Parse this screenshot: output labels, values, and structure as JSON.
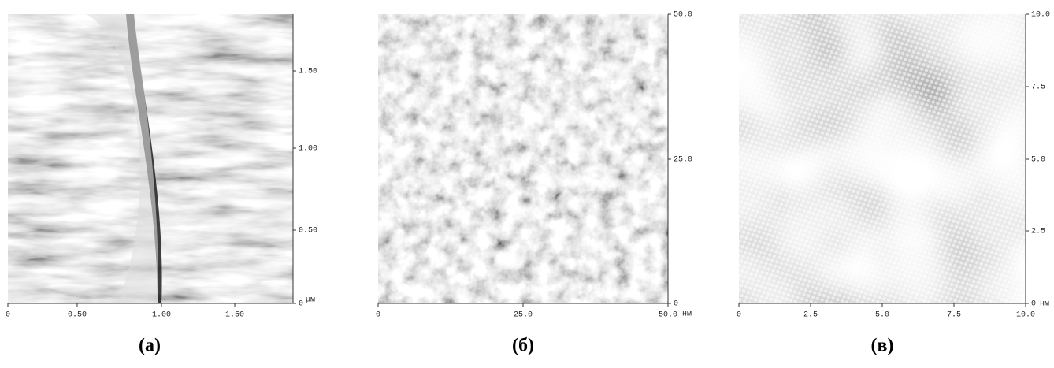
{
  "panels": [
    {
      "caption": "(а)",
      "xticks": [
        "0",
        "0.50",
        "1.00",
        "1.50"
      ],
      "yticks": [
        "0",
        "0.50",
        "1.00",
        "1.50"
      ],
      "unit": "µм"
    },
    {
      "caption": "(б)",
      "xticks": [
        "0",
        "25.0",
        "50.0"
      ],
      "yticks": [
        "0",
        "25.0",
        "50.0"
      ],
      "unit": "нм"
    },
    {
      "caption": "(в)",
      "xticks": [
        "0",
        "2.5",
        "5.0",
        "7.5",
        "10.0"
      ],
      "yticks": [
        "0",
        "2.5",
        "5.0",
        "7.5",
        "10.0"
      ],
      "unit": "нм"
    }
  ]
}
